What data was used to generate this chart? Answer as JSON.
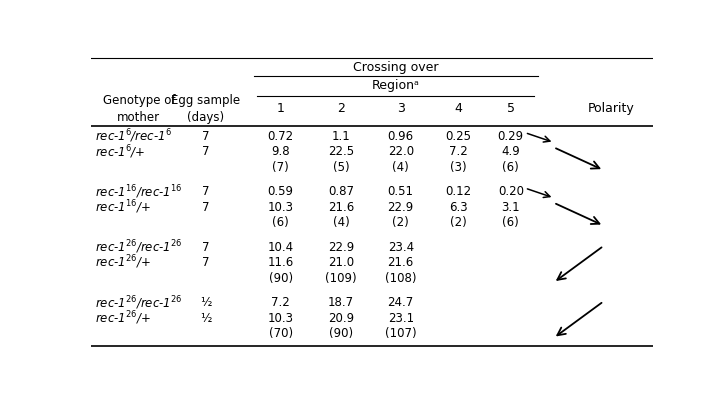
{
  "header_crossing": "Crossing over",
  "header_region": "Regionᵃ",
  "col_subheaders": [
    "1",
    "2",
    "3",
    "4",
    "5"
  ],
  "col_header1": "Genotype of\nmother",
  "col_header2": "Egg sample\n(days)",
  "col_header_polarity": "Polarity",
  "rows": [
    {
      "genotype": "rec-1$^6$/rec-1$^6$",
      "egg": "7",
      "vals": [
        "0.72",
        "1.1",
        "0.96",
        "0.25",
        "0.29"
      ],
      "italic": true
    },
    {
      "genotype": "rec-1$^6$/+",
      "egg": "7",
      "vals": [
        "9.8",
        "22.5",
        "22.0",
        "7.2",
        "4.9"
      ],
      "italic": true
    },
    {
      "genotype": "",
      "egg": "",
      "vals": [
        "(7)",
        "(5)",
        "(4)",
        "(3)",
        "(6)"
      ],
      "italic": false
    },
    {
      "genotype": "rec-1$^{16}$/rec-1$^{16}$",
      "egg": "7",
      "vals": [
        "0.59",
        "0.87",
        "0.51",
        "0.12",
        "0.20"
      ],
      "italic": true
    },
    {
      "genotype": "rec-1$^{16}$/+",
      "egg": "7",
      "vals": [
        "10.3",
        "21.6",
        "22.9",
        "6.3",
        "3.1"
      ],
      "italic": true
    },
    {
      "genotype": "",
      "egg": "",
      "vals": [
        "(6)",
        "(4)",
        "(2)",
        "(2)",
        "(6)"
      ],
      "italic": false
    },
    {
      "genotype": "rec-1$^{26}$/rec-1$^{26}$",
      "egg": "7",
      "vals": [
        "10.4",
        "22.9",
        "23.4",
        "",
        ""
      ],
      "italic": true
    },
    {
      "genotype": "rec-1$^{26}$/+",
      "egg": "7",
      "vals": [
        "11.6",
        "21.0",
        "21.6",
        "",
        ""
      ],
      "italic": true
    },
    {
      "genotype": "",
      "egg": "",
      "vals": [
        "(90)",
        "(109)",
        "(108)",
        "",
        ""
      ],
      "italic": false
    },
    {
      "genotype": "rec-1$^{26}$/rec-1$^{26}$",
      "egg": "½",
      "vals": [
        "7.2",
        "18.7",
        "24.7",
        "",
        ""
      ],
      "italic": true
    },
    {
      "genotype": "rec-1$^{26}$/+",
      "egg": "½",
      "vals": [
        "10.3",
        "20.9",
        "23.1",
        "",
        ""
      ],
      "italic": true
    },
    {
      "genotype": "",
      "egg": "",
      "vals": [
        "(70)",
        "(90)",
        "(107)",
        "",
        ""
      ],
      "italic": false
    }
  ],
  "group_breaks": [
    3,
    6,
    9
  ],
  "arrows": [
    {
      "group": 0,
      "type": "two",
      "direction": "right"
    },
    {
      "group": 1,
      "type": "two",
      "direction": "right"
    },
    {
      "group": 2,
      "type": "one",
      "direction": "left"
    },
    {
      "group": 3,
      "type": "one",
      "direction": "left"
    }
  ],
  "background": "#ffffff"
}
